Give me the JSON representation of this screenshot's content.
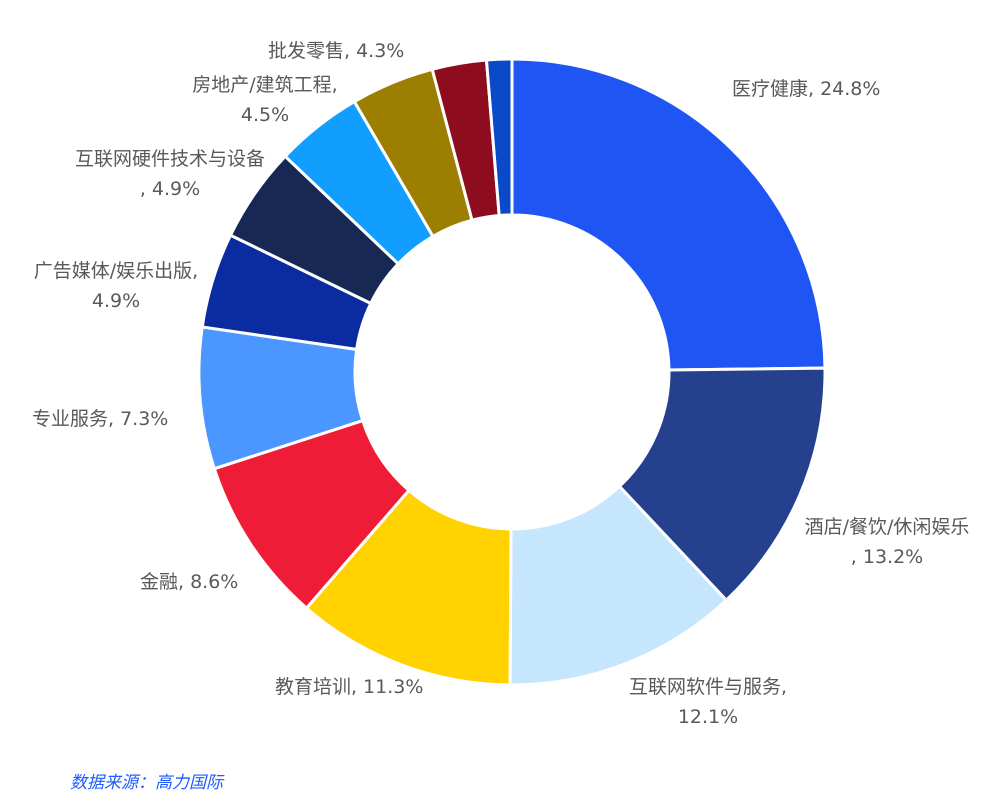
{
  "chart_data": {
    "type": "pie",
    "donut": true,
    "slices": [
      {
        "label": "医疗健康",
        "value": 24.8,
        "display": "24.8%",
        "color": "#1F55F3"
      },
      {
        "label": "酒店/餐饮/休闲娱乐",
        "value": 13.2,
        "display": "13.2%",
        "color": "#25418E"
      },
      {
        "label": "互联网软件与服务",
        "value": 12.1,
        "display": "12.1%",
        "color": "#C6E6FE"
      },
      {
        "label": "教育培训",
        "value": 11.3,
        "display": "11.3%",
        "color": "#FFD200"
      },
      {
        "label": "金融",
        "value": 8.6,
        "display": "8.6%",
        "color": "#EE1C37"
      },
      {
        "label": "专业服务",
        "value": 7.3,
        "display": "7.3%",
        "color": "#4C96FF"
      },
      {
        "label": "广告媒体/娱乐出版",
        "value": 4.9,
        "display": "4.9%",
        "color": "#0A2CA0"
      },
      {
        "label": "互联网硬件技术与设备",
        "value": 4.9,
        "display": "4.9%",
        "color": "#172854"
      },
      {
        "label": "房地产/建筑工程",
        "value": 4.5,
        "display": "4.5%",
        "color": "#129EFF"
      },
      {
        "label": "批发零售",
        "value": 4.3,
        "display": "4.3%",
        "color": "#9C7E00"
      },
      {
        "label": "",
        "value": 2.8,
        "display": "",
        "color": "#8D0D1E"
      },
      {
        "label": "",
        "value": 1.3,
        "display": "",
        "color": "#0A4AC8"
      }
    ]
  },
  "source": "数据来源：高力国际"
}
